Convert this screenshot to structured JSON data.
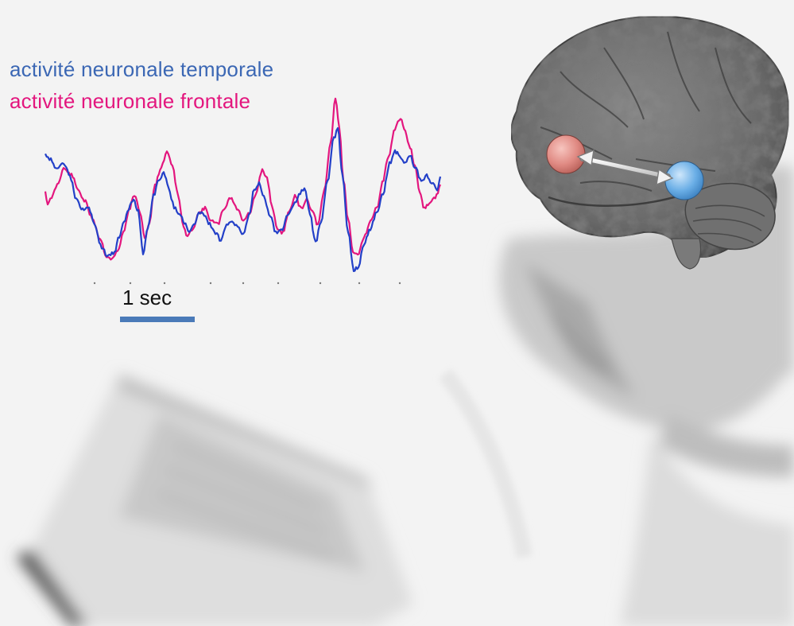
{
  "legend": {
    "temporal_label": "activité neuronale temporale",
    "frontal_label": "activité neuronale frontale"
  },
  "scale_bar": {
    "label": "1 sec"
  },
  "colors": {
    "temporal": "#2340c8",
    "frontal": "#e3167e",
    "temporal_text": "#3b67b4",
    "frontal_text": "#e3167e",
    "scale_bar": "#4a7ab8",
    "brain_node_frontal": "#e08a83",
    "brain_node_temporal": "#6aaee6",
    "background": "#f3f3f3"
  },
  "icons": {
    "brain": "brain-icon",
    "connection": "double-arrow-icon"
  }
}
